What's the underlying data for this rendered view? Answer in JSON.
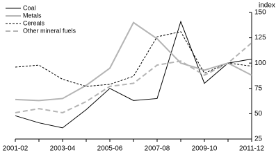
{
  "chart_data": {
    "type": "line",
    "y_axis_label": "index",
    "categories": [
      "2001-02",
      null,
      "2003-04",
      null,
      "2005-06",
      null,
      "2007-08",
      null,
      "2009-10",
      null,
      "2011-12"
    ],
    "series": [
      {
        "name": "Coal",
        "color": "#000000",
        "dash": "solid",
        "values": [
          48,
          41,
          36,
          54,
          75,
          63,
          65,
          141,
          80,
          100,
          104
        ]
      },
      {
        "name": "Metals",
        "color": "#b4b4b4",
        "dash": "solid",
        "values": [
          64,
          63,
          65,
          78,
          95,
          140,
          124,
          100,
          93,
          100,
          88
        ]
      },
      {
        "name": "Cereals",
        "color": "#000000",
        "dash": "dashed",
        "values": [
          96,
          98,
          84,
          77,
          79,
          87,
          126,
          131,
          90,
          100,
          97
        ]
      },
      {
        "name": "Other mineral fuels",
        "color": "#b4b4b4",
        "dash": "dashed",
        "values": [
          51,
          55,
          51,
          62,
          77,
          80,
          98,
          102,
          88,
          100,
          120
        ]
      }
    ],
    "ylim": [
      25,
      150
    ],
    "yticks": [
      25,
      50,
      75,
      100,
      125,
      150
    ],
    "legend": "top-left"
  }
}
